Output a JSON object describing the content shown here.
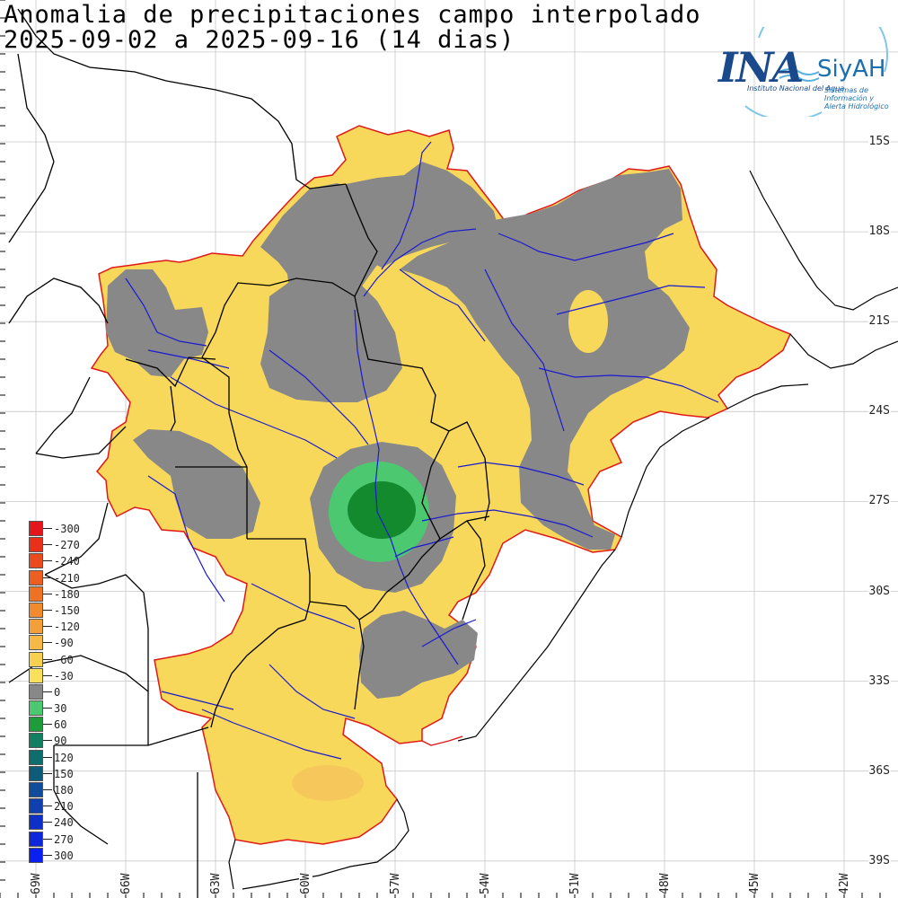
{
  "title": {
    "line1": "Anomalia de precipitaciones campo interpolado",
    "line2": "2025-09-02 a 2025-09-16 (14 dias)"
  },
  "logo": {
    "ina": "INA",
    "siyah": "SiyAH",
    "sub1": "Instituto Nacional del Agua",
    "sub2": "Sistemas de Información y Alerta Hidrológico"
  },
  "lat_labels": [
    "15S",
    "18S",
    "21S",
    "24S",
    "27S",
    "30S",
    "33S",
    "36S",
    "39S"
  ],
  "lon_labels": [
    "69W",
    "66W",
    "63W",
    "60W",
    "57W",
    "54W",
    "51W",
    "48W",
    "45W",
    "42W"
  ],
  "legend": {
    "labels": [
      "-300",
      "-270",
      "-240",
      "-210",
      "-180",
      "-150",
      "-120",
      "-90",
      "-60",
      "-30",
      "0",
      "30",
      "60",
      "90",
      "120",
      "150",
      "180",
      "210",
      "240",
      "270",
      "300"
    ],
    "colors": [
      "#e4161b",
      "#e8301a",
      "#ea4a1d",
      "#ec5f21",
      "#ee7224",
      "#f08a2c",
      "#f3a03a",
      "#f6b948",
      "#f8d050",
      "#f9e05a",
      "#888888",
      "#4cc870",
      "#1e9c3a",
      "#128060",
      "#0e6e6e",
      "#0e5c7a",
      "#104c9c",
      "#1040b0",
      "#0e30c8",
      "#0c28da",
      "#0a20f0"
    ]
  },
  "colors": {
    "yellow": "#f8d85a",
    "orange": "#f6c85c",
    "gray": "#888888",
    "lightgreen": "#4cc870",
    "green": "#1e9c3a",
    "darkgreen": "#138a2e",
    "river": "#1a1ad0",
    "border": "#000000",
    "outline": "#e01818",
    "grid": "#c8c8c8"
  }
}
